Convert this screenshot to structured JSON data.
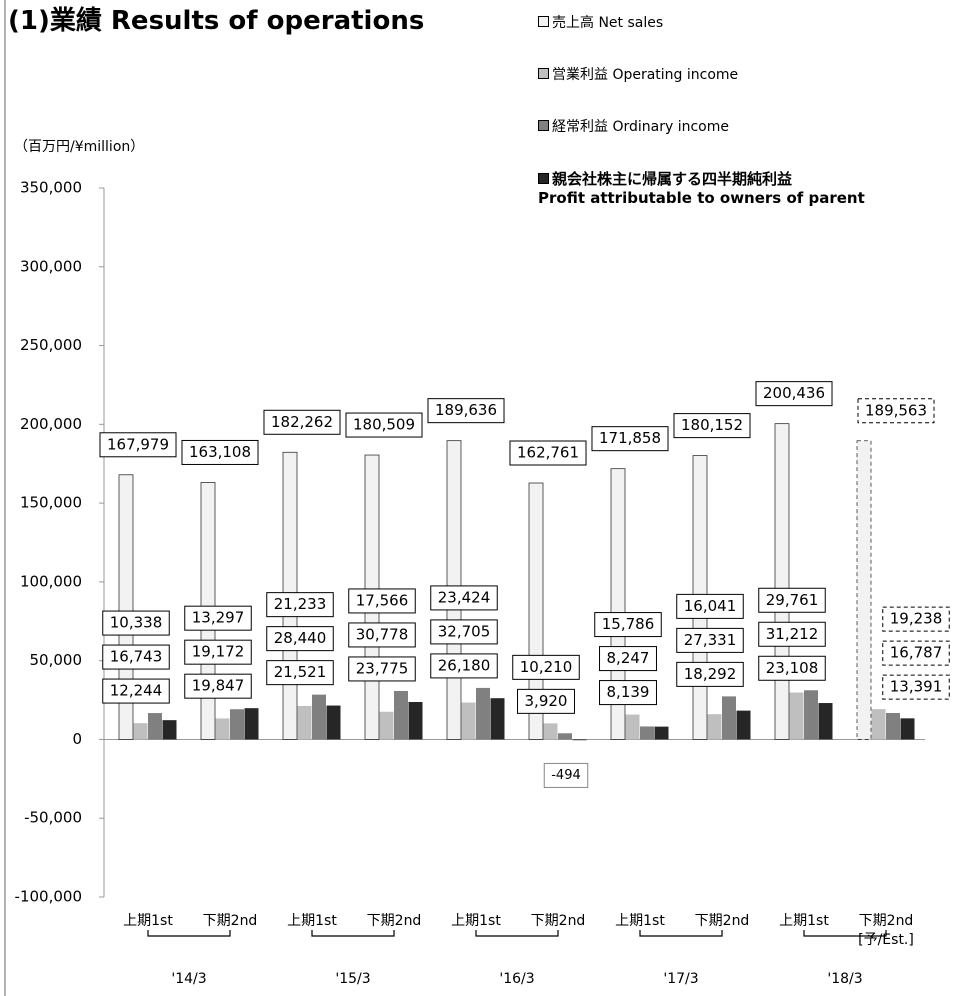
{
  "chart_data": {
    "type": "bar",
    "title": "(1)業績 Results of operations",
    "y_axis_label": "（百万円/¥million）",
    "categories": [
      "上期1st",
      "下期2nd",
      "上期1st",
      "下期2nd",
      "上期1st",
      "下期2nd",
      "上期1st",
      "下期2nd",
      "上期1st",
      "下期2nd\n[予/Est.]"
    ],
    "year_groups": [
      "'14/3",
      "'15/3",
      "'16/3",
      "'17/3",
      "'18/3"
    ],
    "series": [
      {
        "name": "売上高 Net sales",
        "color": "#f2f2f2",
        "values": [
          167979,
          163108,
          182262,
          180509,
          189636,
          162761,
          171858,
          180152,
          200436,
          189563
        ],
        "value_labels": [
          "167,979",
          "163,108",
          "182,262",
          "180,509",
          "189,636",
          "162,761",
          "171,858",
          "180,152",
          "200,436",
          "189,563"
        ]
      },
      {
        "name": "営業利益 Operating income",
        "color": "#bfbfbf",
        "values": [
          10338,
          13297,
          21233,
          17566,
          23424,
          10210,
          15786,
          16041,
          29761,
          19238
        ],
        "value_labels": [
          "10,338",
          "13,297",
          "21,233",
          "17,566",
          "23,424",
          "10,210",
          "15,786",
          "16,041",
          "29,761",
          "19,238"
        ]
      },
      {
        "name": "経常利益 Ordinary income",
        "color": "#808080",
        "values": [
          16743,
          19172,
          28440,
          30778,
          32705,
          3920,
          8247,
          27331,
          31212,
          16787
        ],
        "value_labels": [
          "16,743",
          "19,172",
          "28,440",
          "30,778",
          "32,705",
          "3,920",
          "8,247",
          "27,331",
          "31,212",
          "16,787"
        ]
      },
      {
        "name": "親会社株主に帰属する四半期純利益\nProfit attributable to owners of parent",
        "color": "#262626",
        "values": [
          12244,
          19847,
          21521,
          23775,
          26180,
          -494,
          8139,
          18292,
          23108,
          13391
        ],
        "value_labels": [
          "12,244",
          "19,847",
          "21,521",
          "23,775",
          "26,180",
          "-494",
          "8,139",
          "18,292",
          "23,108",
          "13,391"
        ]
      }
    ],
    "ylim": [
      -100000,
      350000
    ],
    "yticks": [
      {
        "value": -100000,
        "label": "-100,000"
      },
      {
        "value": -50000,
        "label": "-50,000"
      },
      0,
      {
        "value": 50000,
        "label": "50,000"
      },
      {
        "value": 100000,
        "label": "100,000"
      },
      {
        "value": 150000,
        "label": "150,000"
      },
      {
        "value": 200000,
        "label": "200,000"
      },
      {
        "value": 250000,
        "label": "250,000"
      },
      {
        "value": 300000,
        "label": "300,000"
      },
      {
        "value": 350000,
        "label": "350,000"
      }
    ],
    "grid": false
  }
}
